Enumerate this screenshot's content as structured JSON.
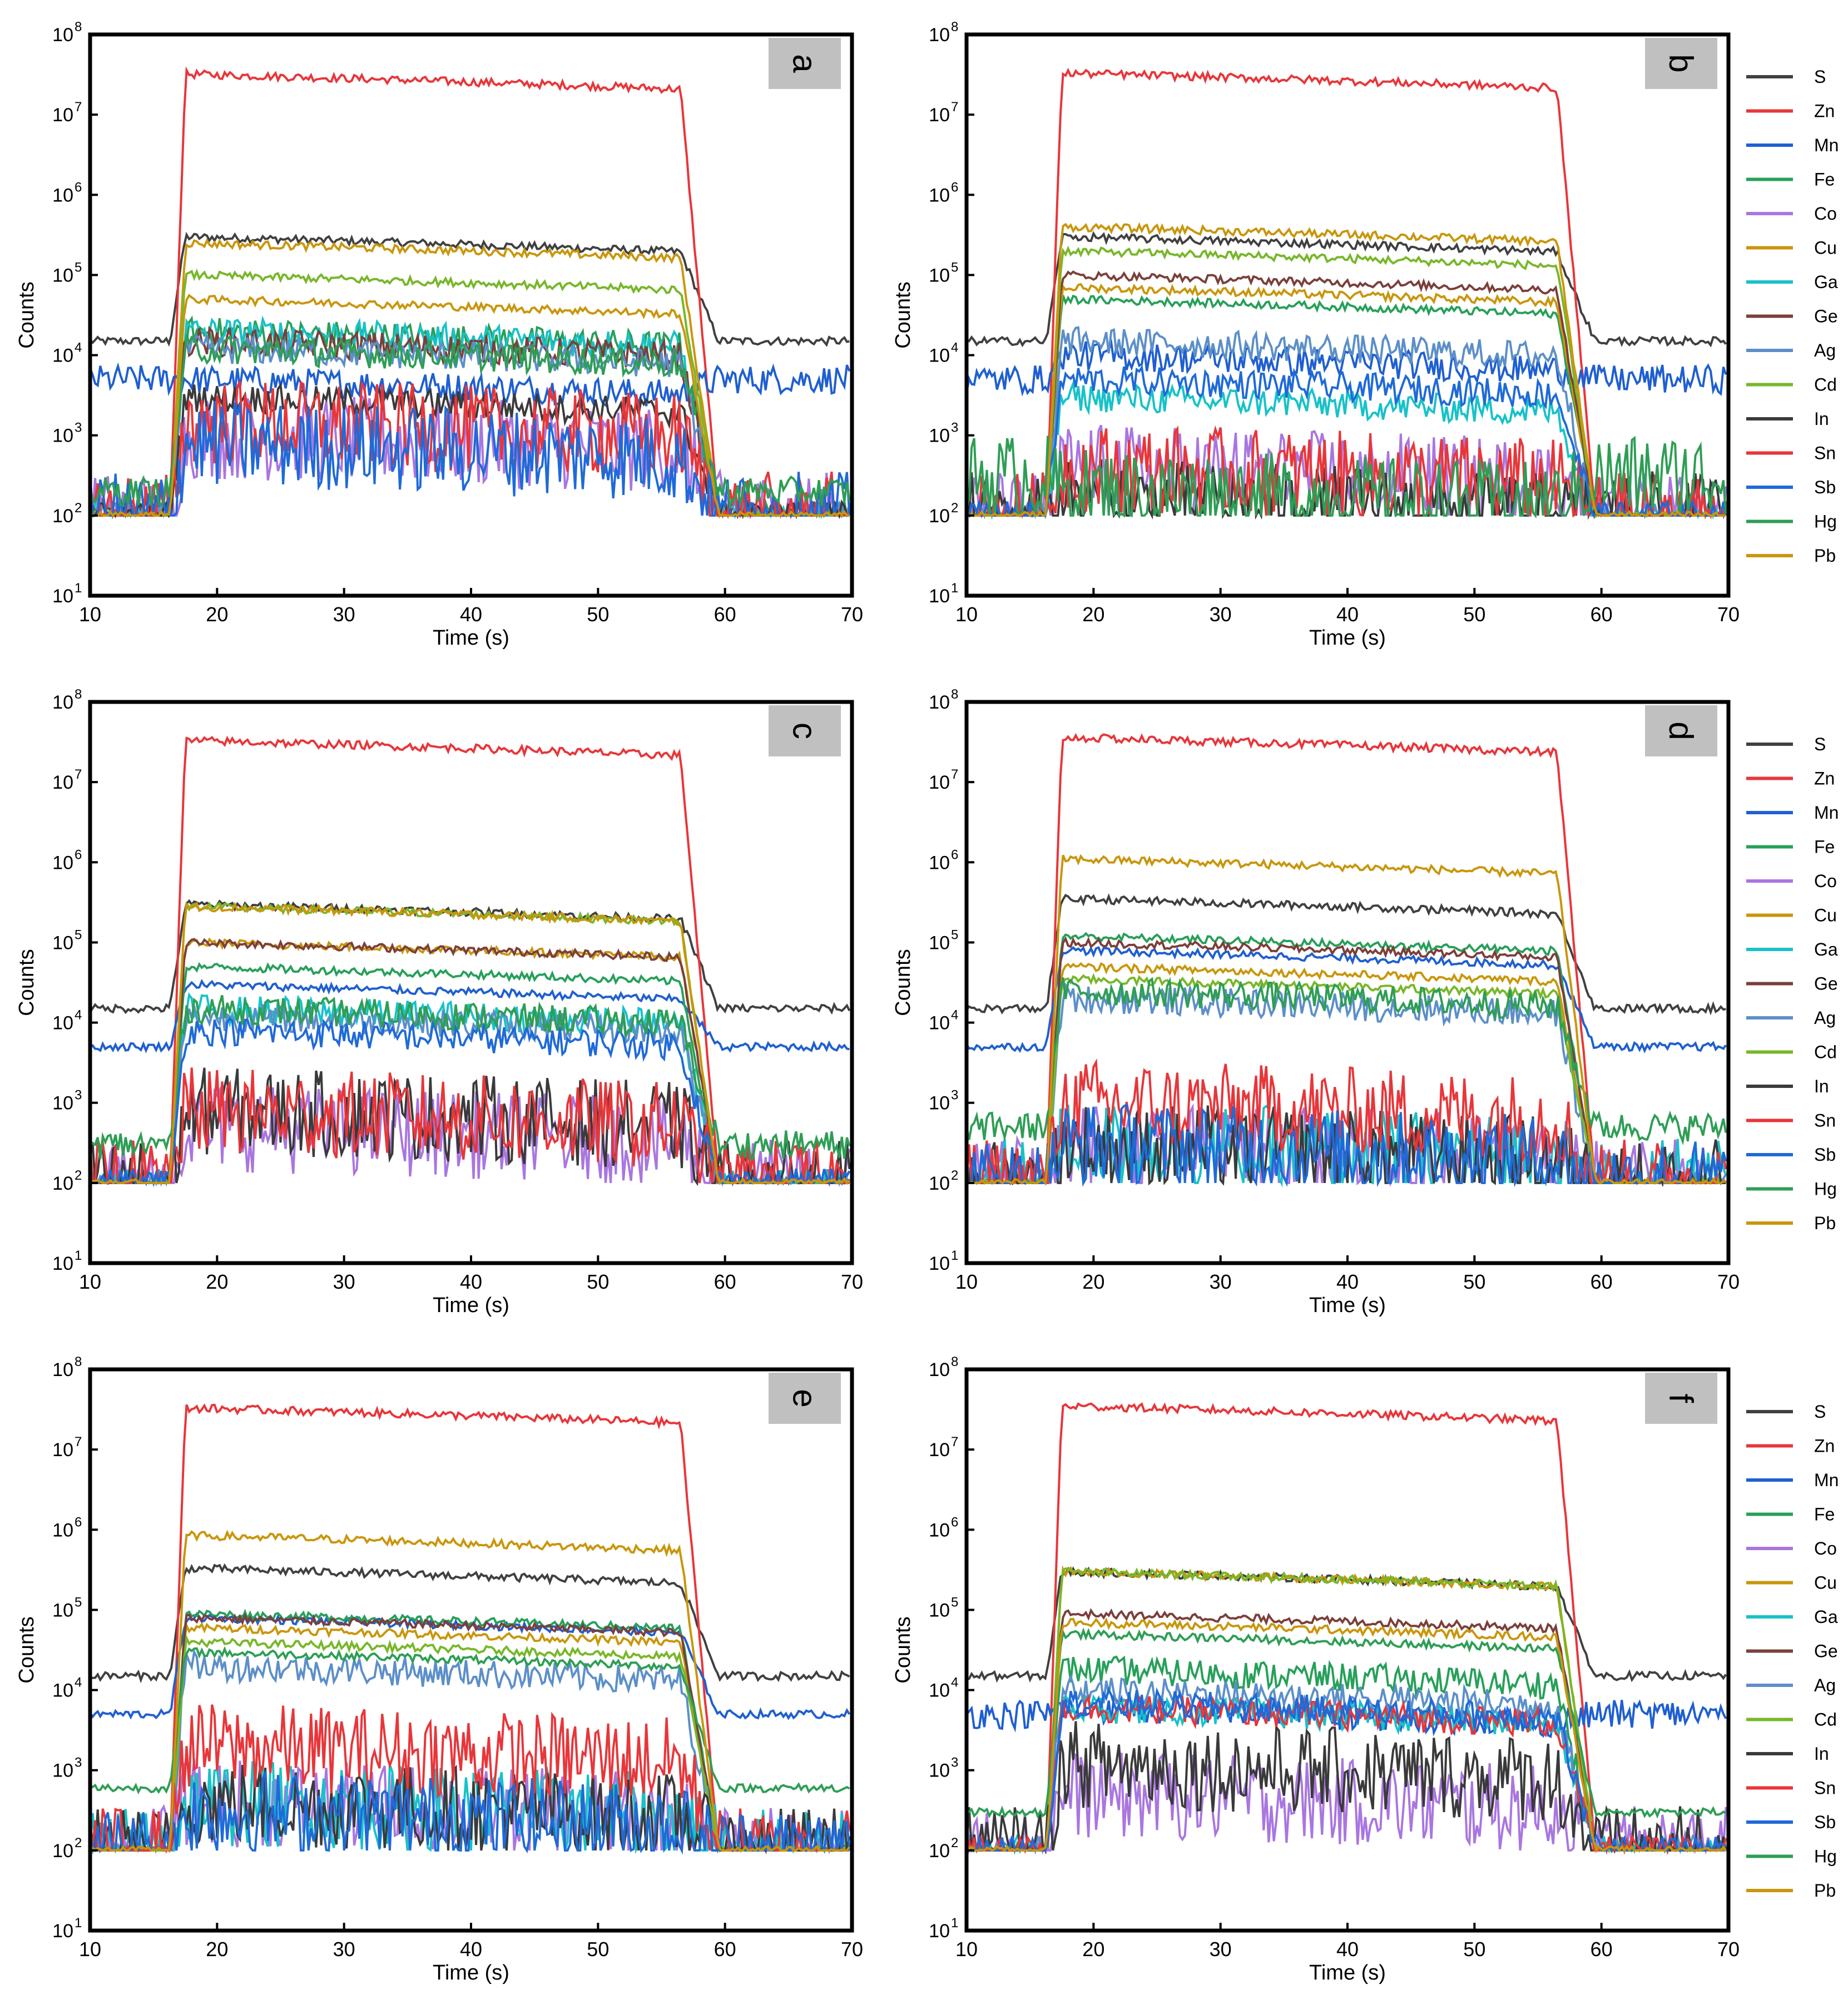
{
  "chart_data": [
    {
      "type": "line",
      "panel_label": "a",
      "xlabel": "Time (s)",
      "ylabel": "Counts",
      "xlim": [
        10,
        70
      ],
      "ylim_log10": [
        1,
        8
      ],
      "x_ticks": [
        "10",
        "20",
        "30",
        "40",
        "50",
        "60",
        "70"
      ],
      "y_ticks": [
        "1",
        "2",
        "3",
        "4",
        "5",
        "6",
        "7",
        "8"
      ],
      "y_tick_base": "10",
      "show_legend": false,
      "plateaus": {
        "S": 300000,
        "Zn": 32000000,
        "Mn": 5000,
        "Fe": 20000,
        "Co": 1000,
        "Cu": 250000,
        "Ga": 20000,
        "Ge": 15000,
        "Ag": 12000,
        "Cd": 100000,
        "In": 3000,
        "Sn": 1500,
        "Sb": 800,
        "Hg": 12000,
        "Pb": 50000
      },
      "backgrounds": {
        "S": 15000,
        "Mn": 5000,
        "Hg": 200
      }
    },
    {
      "type": "line",
      "panel_label": "b",
      "xlabel": "Time (s)",
      "ylabel": "Counts",
      "xlim": [
        10,
        70
      ],
      "ylim_log10": [
        1,
        8
      ],
      "x_ticks": [
        "10",
        "20",
        "30",
        "40",
        "50",
        "60",
        "70"
      ],
      "y_ticks": [
        "1",
        "2",
        "3",
        "4",
        "5",
        "6",
        "7",
        "8"
      ],
      "y_tick_base": "10",
      "show_legend": true,
      "plateaus": {
        "S": 300000,
        "Zn": 33000000,
        "Mn": 10000,
        "Fe": 50000,
        "Co": 400,
        "Cu": 70000,
        "Ga": 3000,
        "Ge": 100000,
        "Ag": 15000,
        "Cd": 200000,
        "In": 150,
        "Sn": 400,
        "Sb": 5000,
        "Hg": 200,
        "Pb": 400000
      },
      "backgrounds": {
        "S": 15000,
        "Mn": 5000,
        "Hg": 300
      }
    },
    {
      "type": "line",
      "panel_label": "c",
      "xlabel": "Time (s)",
      "ylabel": "Counts",
      "xlim": [
        10,
        70
      ],
      "ylim_log10": [
        1,
        8
      ],
      "x_ticks": [
        "10",
        "20",
        "30",
        "40",
        "50",
        "60",
        "70"
      ],
      "y_ticks": [
        "1",
        "2",
        "3",
        "4",
        "5",
        "6",
        "7",
        "8"
      ],
      "y_tick_base": "10",
      "show_legend": false,
      "plateaus": {
        "S": 300000,
        "Zn": 33000000,
        "Mn": 30000,
        "Fe": 50000,
        "Co": 500,
        "Cu": 100000,
        "Ga": 15000,
        "Ge": 100000,
        "Ag": 12000,
        "Cd": 280000,
        "In": 800,
        "Sn": 800,
        "Sb": 8000,
        "Hg": 15000,
        "Pb": 280000
      },
      "backgrounds": {
        "S": 15000,
        "Mn": 5000,
        "Hg": 300
      }
    },
    {
      "type": "line",
      "panel_label": "d",
      "xlabel": "Time (s)",
      "ylabel": "Counts",
      "xlim": [
        10,
        70
      ],
      "ylim_log10": [
        1,
        8
      ],
      "x_ticks": [
        "10",
        "20",
        "30",
        "40",
        "50",
        "60",
        "70"
      ],
      "y_ticks": [
        "1",
        "2",
        "3",
        "4",
        "5",
        "6",
        "7",
        "8"
      ],
      "y_tick_base": "10",
      "show_legend": true,
      "plateaus": {
        "S": 350000,
        "Zn": 36000000,
        "Mn": 80000,
        "Fe": 120000,
        "Co": 300,
        "Cu": 50000,
        "Ga": 300,
        "Ge": 100000,
        "Ag": 20000,
        "Cd": 35000,
        "In": 300,
        "Sn": 1000,
        "Sb": 300,
        "Hg": 25000,
        "Pb": 1100000
      },
      "backgrounds": {
        "S": 15000,
        "Mn": 5000,
        "Hg": 500
      }
    },
    {
      "type": "line",
      "panel_label": "e",
      "xlabel": "Time (s)",
      "ylabel": "Counts",
      "xlim": [
        10,
        70
      ],
      "ylim_log10": [
        1,
        8
      ],
      "x_ticks": [
        "10",
        "20",
        "30",
        "40",
        "50",
        "60",
        "70"
      ],
      "y_ticks": [
        "1",
        "2",
        "3",
        "4",
        "5",
        "6",
        "7",
        "8"
      ],
      "y_tick_base": "10",
      "show_legend": false,
      "plateaus": {
        "S": 330000,
        "Zn": 33000000,
        "Mn": 80000,
        "Fe": 90000,
        "Co": 400,
        "Cu": 60000,
        "Ga": 400,
        "Ge": 80000,
        "Ag": 20000,
        "Cd": 40000,
        "In": 400,
        "Sn": 2000,
        "Sb": 300,
        "Hg": 30000,
        "Pb": 850000
      },
      "backgrounds": {
        "S": 15000,
        "Mn": 5000,
        "Hg": 600
      }
    },
    {
      "type": "line",
      "panel_label": "f",
      "xlabel": "Time (s)",
      "ylabel": "Counts",
      "xlim": [
        10,
        70
      ],
      "ylim_log10": [
        1,
        8
      ],
      "x_ticks": [
        "10",
        "20",
        "30",
        "40",
        "50",
        "60",
        "70"
      ],
      "y_ticks": [
        "1",
        "2",
        "3",
        "4",
        "5",
        "6",
        "7",
        "8"
      ],
      "y_tick_base": "10",
      "show_legend": true,
      "plateaus": {
        "S": 300000,
        "Zn": 35000000,
        "Mn": 6000,
        "Fe": 18000,
        "Co": 500,
        "Cu": 300000,
        "Ga": 6000,
        "Ge": 90000,
        "Ag": 10000,
        "Cd": 300000,
        "In": 1200,
        "Sn": 6000,
        "Sb": 7000,
        "Hg": 50000,
        "Pb": 70000
      },
      "backgrounds": {
        "S": 15000,
        "Mn": 5000,
        "Hg": 300
      }
    }
  ],
  "series_colors": {
    "S": "#404040",
    "Zn": "#e8363a",
    "Mn": "#1f5fd1",
    "Fe": "#27a05a",
    "Co": "#a976e0",
    "Cu": "#c9960c",
    "Ga": "#17c2c8",
    "Ge": "#7b3f3a",
    "Ag": "#5c8fc9",
    "Cd": "#78b72a",
    "In": "#3a3a3a",
    "Sn": "#e8363a",
    "Sb": "#1f6ad8",
    "Hg": "#2e9e55",
    "Pb": "#c9960c"
  },
  "legend": [
    "S",
    "Zn",
    "Mn",
    "Fe",
    "Co",
    "Cu",
    "Ga",
    "Ge",
    "Ag",
    "Cd",
    "In",
    "Sn",
    "Sb",
    "Hg",
    "Pb"
  ]
}
